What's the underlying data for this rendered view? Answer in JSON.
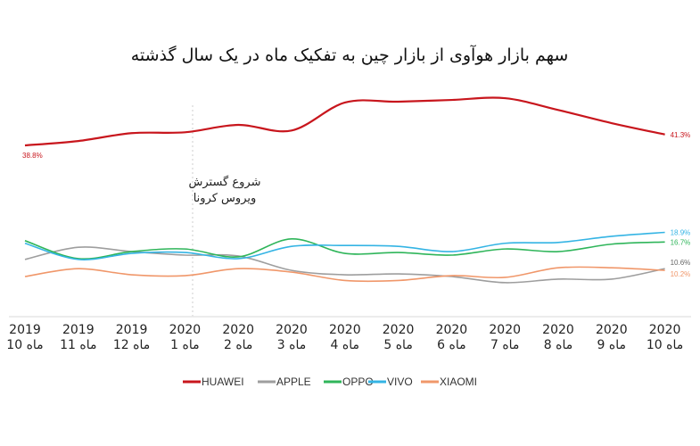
{
  "chart_data": {
    "type": "line",
    "title": "سهم بازار هوآوی از بازار چین به تفکیک ماه در یک سال گذشته",
    "annotation": {
      "line1": "شروع گسترش",
      "line2": "ویروس کرونا",
      "at_index": 3
    },
    "categories": [
      {
        "year": "2019",
        "month": "ماه 10"
      },
      {
        "year": "2019",
        "month": "ماه 11"
      },
      {
        "year": "2019",
        "month": "ماه 12"
      },
      {
        "year": "2020",
        "month": "ماه 1"
      },
      {
        "year": "2020",
        "month": "ماه 2"
      },
      {
        "year": "2020",
        "month": "ماه 3"
      },
      {
        "year": "2020",
        "month": "ماه 4"
      },
      {
        "year": "2020",
        "month": "ماه 5"
      },
      {
        "year": "2020",
        "month": "ماه 6"
      },
      {
        "year": "2020",
        "month": "ماه 7"
      },
      {
        "year": "2020",
        "month": "ماه 8"
      },
      {
        "year": "2020",
        "month": "ماه 9"
      },
      {
        "year": "2020",
        "month": "ماه 10"
      }
    ],
    "ylim": [
      0,
      55
    ],
    "grid": false,
    "legend_position": "bottom-center",
    "series": [
      {
        "name": "HUAWEI",
        "color": "#c8161d",
        "values": [
          38.8,
          39.8,
          41.6,
          41.8,
          43.5,
          42.2,
          48.6,
          48.8,
          49.2,
          49.6,
          46.9,
          43.9,
          41.3
        ],
        "start_label": "38.8%",
        "end_label": "41.3%"
      },
      {
        "name": "APPLE",
        "color": "#9e9e9e",
        "values": [
          12.7,
          15.5,
          14.5,
          13.7,
          13.5,
          10.2,
          9.2,
          9.4,
          8.8,
          7.4,
          8.2,
          8.2,
          10.6
        ],
        "end_label": "10.6%"
      },
      {
        "name": "OPPO",
        "color": "#2fb55a",
        "values": [
          17.0,
          12.9,
          14.5,
          15.1,
          13.3,
          17.4,
          14.1,
          14.3,
          13.7,
          15.1,
          14.5,
          16.2,
          16.7
        ],
        "end_label": "16.7%"
      },
      {
        "name": "VIVO",
        "color": "#34b4e4",
        "values": [
          16.4,
          12.7,
          14.1,
          14.3,
          12.9,
          15.7,
          15.9,
          15.7,
          14.5,
          16.4,
          16.6,
          18.0,
          18.9
        ],
        "end_label": "18.9%"
      },
      {
        "name": "XIAOMI",
        "color": "#f0976a",
        "values": [
          8.8,
          10.6,
          9.2,
          9.0,
          10.6,
          9.8,
          7.9,
          7.9,
          9.0,
          8.6,
          10.8,
          10.8,
          10.2
        ],
        "end_label": "10.2%"
      }
    ]
  }
}
